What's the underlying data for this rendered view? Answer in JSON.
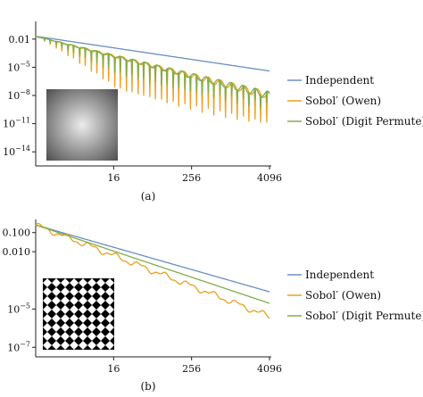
{
  "colors": {
    "independent": "#6a8fbf",
    "owen": "#e9a020",
    "digit": "#7fae4d"
  },
  "chart_data": [
    {
      "type": "line",
      "panel_label": "(a)",
      "x_scale": "log2",
      "y_scale": "log10",
      "xlim": [
        1,
        4096
      ],
      "ylim_log10": [
        -15.5,
        -0.5
      ],
      "xticks": [
        16,
        256,
        4096
      ],
      "xtick_labels": [
        "16",
        "256",
        "4096"
      ],
      "yticks": [
        0.01,
        1e-05,
        1e-08,
        1e-11,
        1e-14
      ],
      "ytick_labels": [
        "0.01",
        "10-5",
        "10-8",
        "10-11",
        "10-14"
      ],
      "legend_position": "right",
      "inset": "radial-gradient",
      "series": [
        {
          "name": "Independent",
          "color_key": "independent",
          "x": [
            1,
            4096
          ],
          "y": [
            0.02,
            4e-06
          ]
        },
        {
          "name": "Sobol′ (Owen)",
          "color_key": "owen",
          "x": [
            1,
            4096
          ],
          "y": [
            0.02,
            1e-08
          ],
          "oscillating": true,
          "trough_y": 1e-13
        },
        {
          "name": "Sobol′ (Digit Permute)",
          "color_key": "digit",
          "x": [
            1,
            4096
          ],
          "y": [
            0.02,
            1e-08
          ],
          "oscillating": true,
          "trough_y": 1e-10
        }
      ]
    },
    {
      "type": "line",
      "panel_label": "(b)",
      "x_scale": "log2",
      "y_scale": "log10",
      "xlim": [
        1,
        4096
      ],
      "ylim_log10": [
        -7.5,
        -0.5
      ],
      "xticks": [
        16,
        256,
        4096
      ],
      "xtick_labels": [
        "16",
        "256",
        "4096"
      ],
      "yticks": [
        0.1,
        0.01,
        1e-05,
        1e-07
      ],
      "ytick_labels": [
        "0.100",
        "0.010",
        "10-5",
        "10-7"
      ],
      "legend_position": "right",
      "inset": "checkerboard",
      "series": [
        {
          "name": "Independent",
          "color_key": "independent",
          "x": [
            1,
            4096
          ],
          "y": [
            0.25,
            8e-05
          ]
        },
        {
          "name": "Sobol′ (Owen)",
          "color_key": "owen",
          "x": [
            1,
            4096
          ],
          "y": [
            0.25,
            4e-06
          ],
          "wiggly": true
        },
        {
          "name": "Sobol′ (Digit Permute)",
          "color_key": "digit",
          "x": [
            1,
            4096
          ],
          "y": [
            0.25,
            2e-05
          ]
        }
      ]
    }
  ]
}
